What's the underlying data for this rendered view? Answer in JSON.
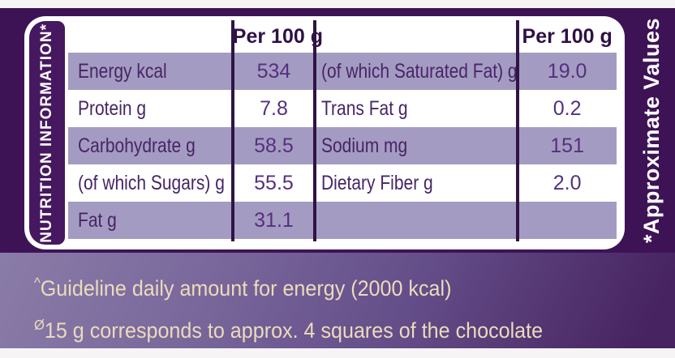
{
  "label": {
    "left_vertical": "NUTRITION INFORMATION*",
    "right_vertical": "*Approximate Values"
  },
  "table": {
    "col2_header": "Per 100 g",
    "col4_header": "Per 100 g",
    "rows": [
      {
        "n1": "Energy kcal",
        "v1": "534",
        "n2": "(of which Saturated Fat) g",
        "v2": "19.0"
      },
      {
        "n1": "Protein g",
        "v1": "7.8",
        "n2": "Trans Fat g",
        "v2": "0.2"
      },
      {
        "n1": "Carbohydrate g",
        "v1": "58.5",
        "n2": "Sodium mg",
        "v2": "151"
      },
      {
        "n1": "(of which Sugars) g",
        "v1": "55.5",
        "n2": "Dietary Fiber g",
        "v2": "2.0"
      },
      {
        "n1": "Fat g",
        "v1": "31.1",
        "n2": "",
        "v2": ""
      }
    ]
  },
  "notes": [
    {
      "prefix": "^",
      "text": "Guideline daily amount for energy (2000 kcal)"
    },
    {
      "prefix": "Ø",
      "text": "15 g corresponds to approx. 4 squares of the chocolate"
    }
  ],
  "colors": {
    "brand_purple": "#3E1356",
    "label_strip_purple": "#46185F",
    "row_shade_lavender": "#A49BC2",
    "table_text_purple": "#472566",
    "value_text_purple": "#54307E",
    "divider_line": "#2E1546",
    "notes_cream": "#EBDBBC",
    "strip_gradient_start": "#8A7CA8",
    "strip_gradient_end": "#472361"
  }
}
